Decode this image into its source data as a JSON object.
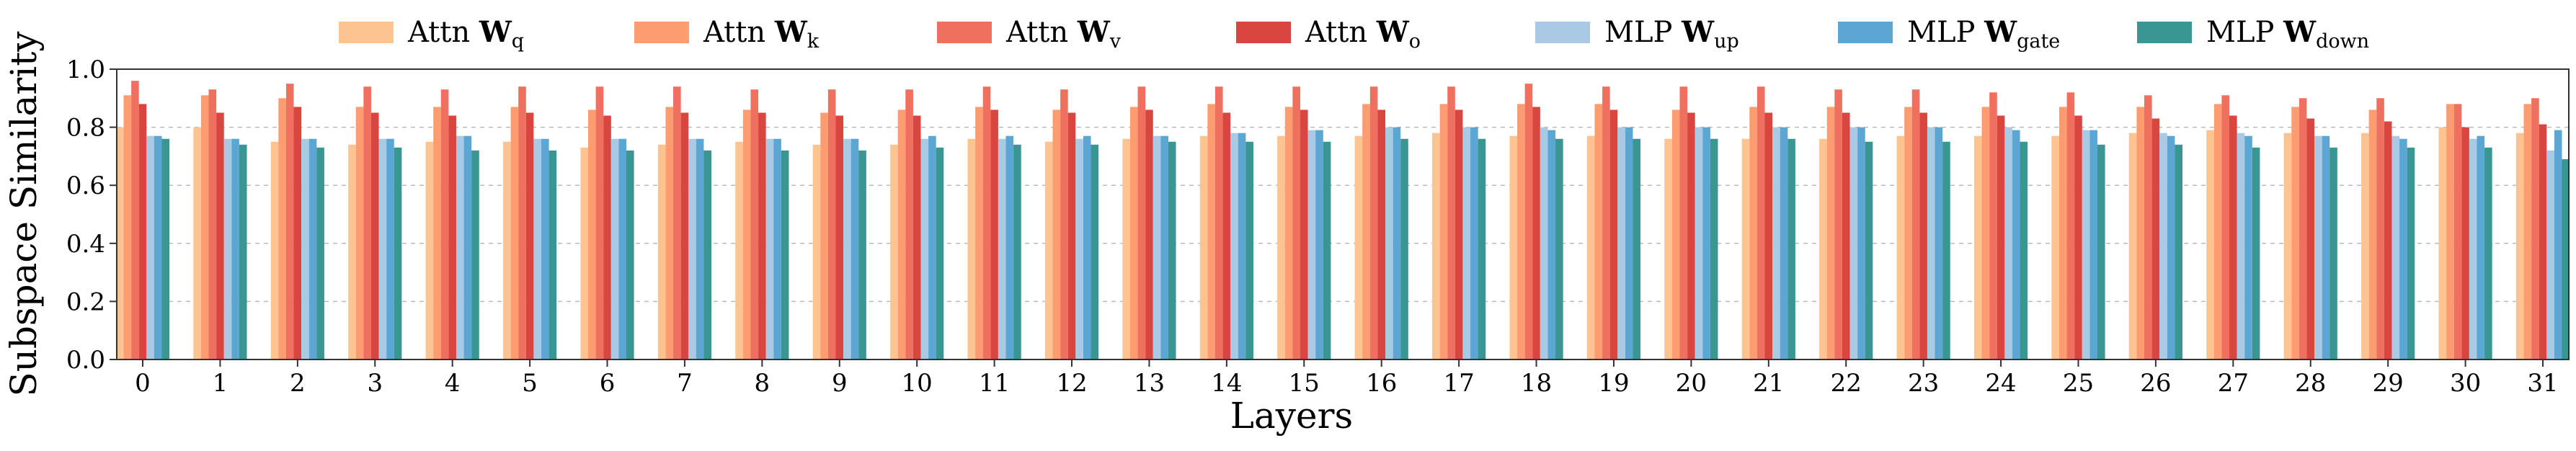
{
  "chart_data": {
    "type": "bar",
    "title": "",
    "xlabel": "Layers",
    "ylabel": "Subspace Similarity",
    "ylim": [
      0,
      1.0
    ],
    "yticks": [
      "0.0",
      "0.2",
      "0.4",
      "0.6",
      "0.8",
      "1.0"
    ],
    "grid": "horizontal dashed",
    "legend_position": "top",
    "categories": [
      "0",
      "1",
      "2",
      "3",
      "4",
      "5",
      "6",
      "7",
      "8",
      "9",
      "10",
      "11",
      "12",
      "13",
      "14",
      "15",
      "16",
      "17",
      "18",
      "19",
      "20",
      "21",
      "22",
      "23",
      "24",
      "25",
      "26",
      "27",
      "28",
      "29",
      "30",
      "31"
    ],
    "series": [
      {
        "name": "Attn W_q",
        "prefix": "Attn",
        "symbol": "W",
        "sub": "q",
        "color": "#fdc491",
        "values": [
          0.8,
          0.8,
          0.75,
          0.74,
          0.75,
          0.75,
          0.73,
          0.74,
          0.75,
          0.74,
          0.74,
          0.76,
          0.75,
          0.76,
          0.77,
          0.77,
          0.77,
          0.78,
          0.77,
          0.77,
          0.76,
          0.76,
          0.76,
          0.77,
          0.77,
          0.77,
          0.78,
          0.79,
          0.78,
          0.78,
          0.8,
          0.78
        ]
      },
      {
        "name": "Attn W_k",
        "prefix": "Attn",
        "symbol": "W",
        "sub": "k",
        "color": "#fc9c70",
        "values": [
          0.91,
          0.91,
          0.9,
          0.87,
          0.87,
          0.87,
          0.86,
          0.87,
          0.86,
          0.85,
          0.86,
          0.87,
          0.86,
          0.87,
          0.88,
          0.87,
          0.88,
          0.88,
          0.88,
          0.88,
          0.86,
          0.87,
          0.87,
          0.87,
          0.87,
          0.87,
          0.87,
          0.88,
          0.87,
          0.86,
          0.88,
          0.88
        ]
      },
      {
        "name": "Attn W_v",
        "prefix": "Attn",
        "symbol": "W",
        "sub": "v",
        "color": "#f07060",
        "values": [
          0.96,
          0.93,
          0.95,
          0.94,
          0.93,
          0.94,
          0.94,
          0.94,
          0.93,
          0.93,
          0.93,
          0.94,
          0.93,
          0.94,
          0.94,
          0.94,
          0.94,
          0.94,
          0.95,
          0.94,
          0.94,
          0.94,
          0.93,
          0.93,
          0.92,
          0.92,
          0.91,
          0.91,
          0.9,
          0.9,
          0.88,
          0.9
        ]
      },
      {
        "name": "Attn W_o",
        "prefix": "Attn",
        "symbol": "W",
        "sub": "o",
        "color": "#d9453f",
        "values": [
          0.88,
          0.85,
          0.87,
          0.85,
          0.84,
          0.85,
          0.84,
          0.85,
          0.85,
          0.84,
          0.84,
          0.86,
          0.85,
          0.86,
          0.85,
          0.86,
          0.86,
          0.86,
          0.87,
          0.86,
          0.85,
          0.85,
          0.85,
          0.85,
          0.84,
          0.84,
          0.83,
          0.84,
          0.83,
          0.82,
          0.8,
          0.81
        ]
      },
      {
        "name": "MLP W_up",
        "prefix": "MLP",
        "symbol": "W",
        "sub": "up",
        "color": "#a9c9e4",
        "values": [
          0.77,
          0.76,
          0.76,
          0.76,
          0.77,
          0.76,
          0.76,
          0.76,
          0.76,
          0.76,
          0.76,
          0.76,
          0.76,
          0.77,
          0.78,
          0.79,
          0.8,
          0.8,
          0.8,
          0.8,
          0.8,
          0.8,
          0.8,
          0.8,
          0.8,
          0.79,
          0.78,
          0.78,
          0.77,
          0.77,
          0.76,
          0.72
        ]
      },
      {
        "name": "MLP W_gate",
        "prefix": "MLP",
        "symbol": "W",
        "sub": "gate",
        "color": "#5ba6d2",
        "values": [
          0.77,
          0.76,
          0.76,
          0.76,
          0.77,
          0.76,
          0.76,
          0.76,
          0.76,
          0.76,
          0.77,
          0.77,
          0.77,
          0.77,
          0.78,
          0.79,
          0.8,
          0.8,
          0.79,
          0.8,
          0.8,
          0.8,
          0.8,
          0.8,
          0.79,
          0.79,
          0.77,
          0.77,
          0.77,
          0.76,
          0.77,
          0.79
        ]
      },
      {
        "name": "MLP W_down",
        "prefix": "MLP",
        "symbol": "W",
        "sub": "down",
        "color": "#3a9693",
        "values": [
          0.76,
          0.74,
          0.73,
          0.73,
          0.72,
          0.72,
          0.72,
          0.72,
          0.72,
          0.72,
          0.73,
          0.74,
          0.74,
          0.75,
          0.75,
          0.75,
          0.76,
          0.76,
          0.76,
          0.76,
          0.76,
          0.76,
          0.75,
          0.75,
          0.75,
          0.74,
          0.74,
          0.73,
          0.73,
          0.73,
          0.73,
          0.69
        ]
      }
    ]
  }
}
